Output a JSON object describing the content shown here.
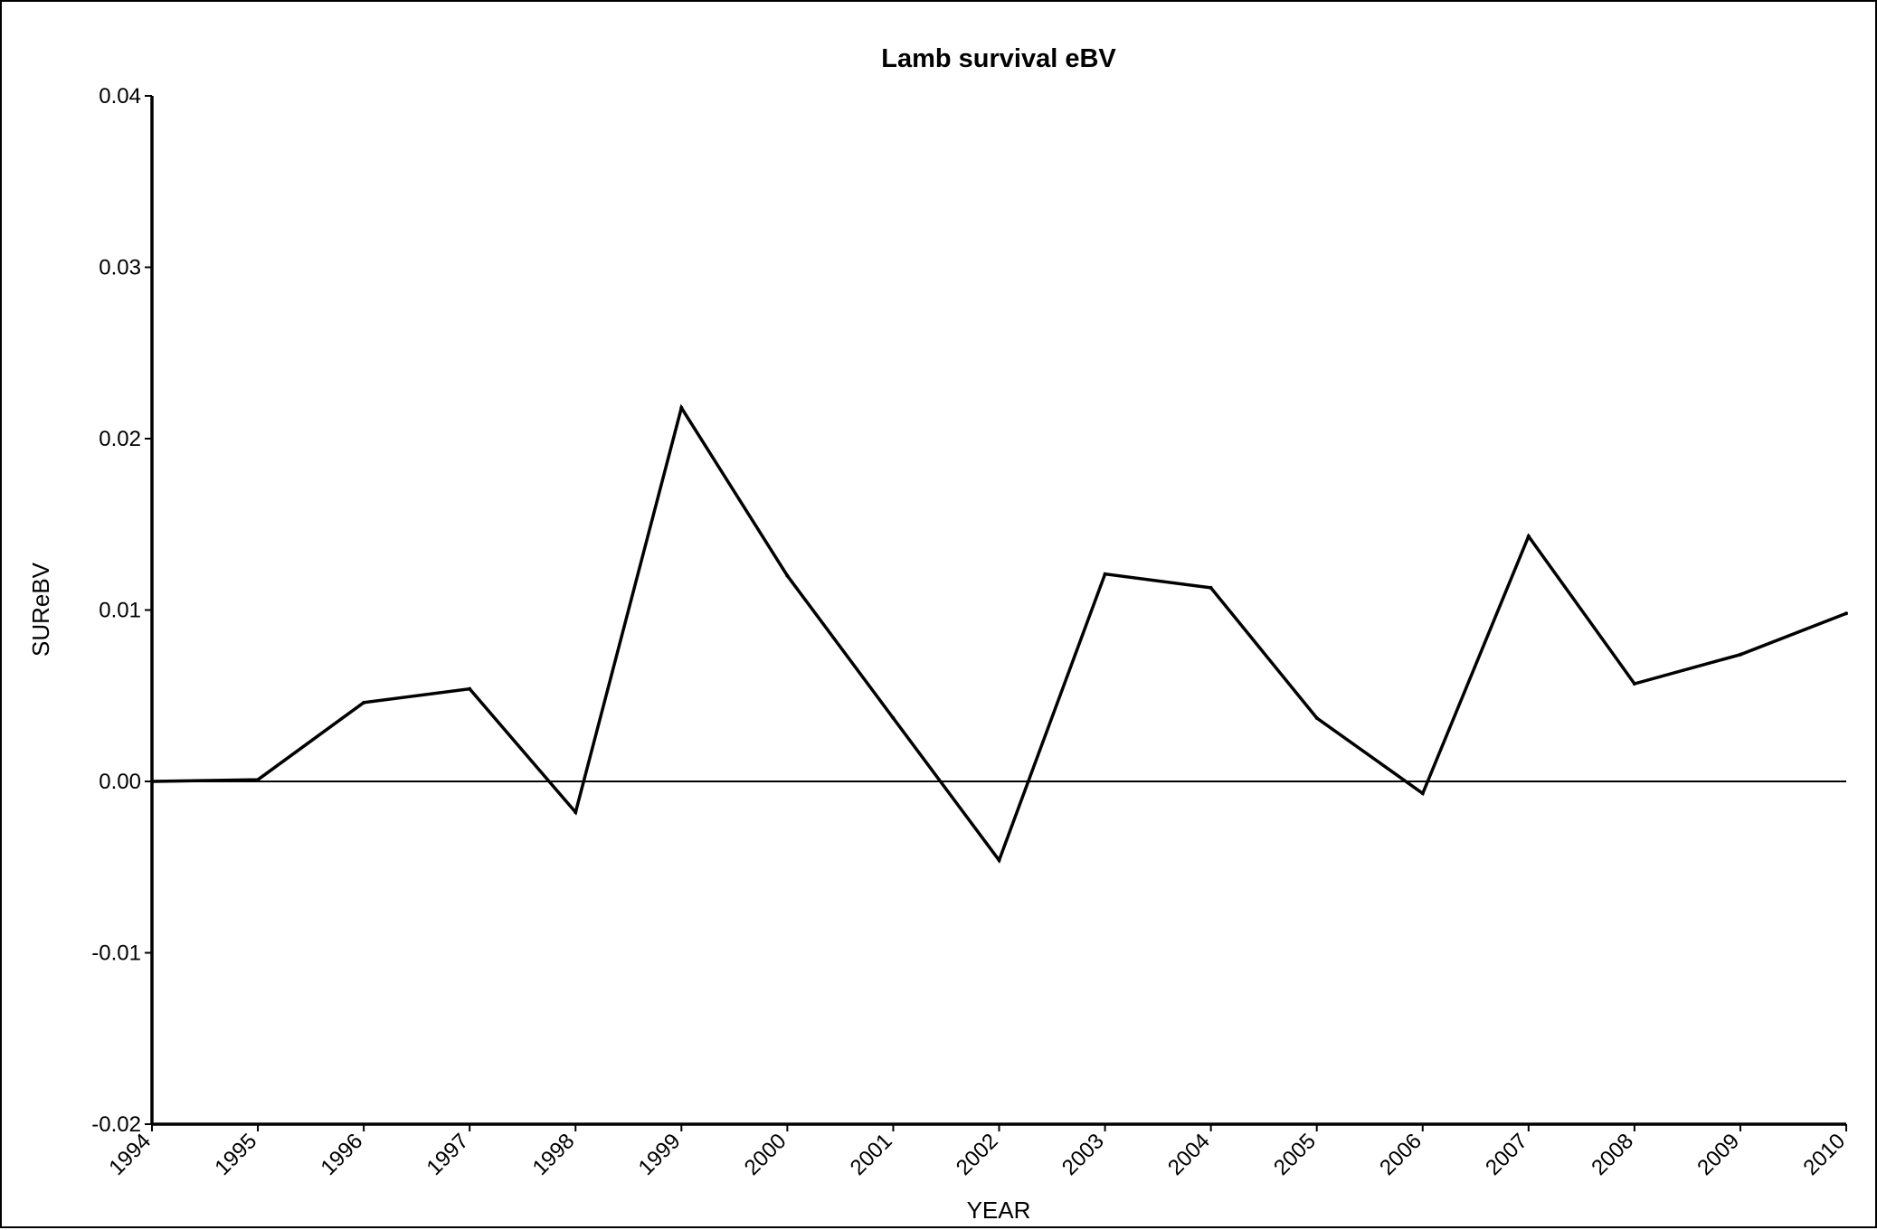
{
  "chart_data": {
    "type": "line",
    "title": "Lamb survival eBV",
    "xlabel": "YEAR",
    "ylabel": "SUReBV",
    "x": [
      "1994",
      "1995",
      "1996",
      "1997",
      "1998",
      "1999",
      "2000",
      "2001",
      "2002",
      "2003",
      "2004",
      "2005",
      "2006",
      "2007",
      "2008",
      "2009",
      "2010"
    ],
    "series": [
      {
        "values": [
          0.0,
          0.0001,
          0.0046,
          0.0054,
          -0.0018,
          0.0218,
          0.012,
          0.0037,
          -0.0046,
          0.0121,
          0.0113,
          0.0037,
          -0.0007,
          0.0143,
          0.0057,
          0.0074,
          0.0098
        ]
      }
    ],
    "ylim": [
      -0.02,
      0.04
    ],
    "yticks": [
      "-0.02",
      "-0.01",
      "0.00",
      "0.01",
      "0.02",
      "0.03",
      "0.04"
    ],
    "zero_line": true,
    "grid": false,
    "legend": "none",
    "line_color": "#000000"
  }
}
